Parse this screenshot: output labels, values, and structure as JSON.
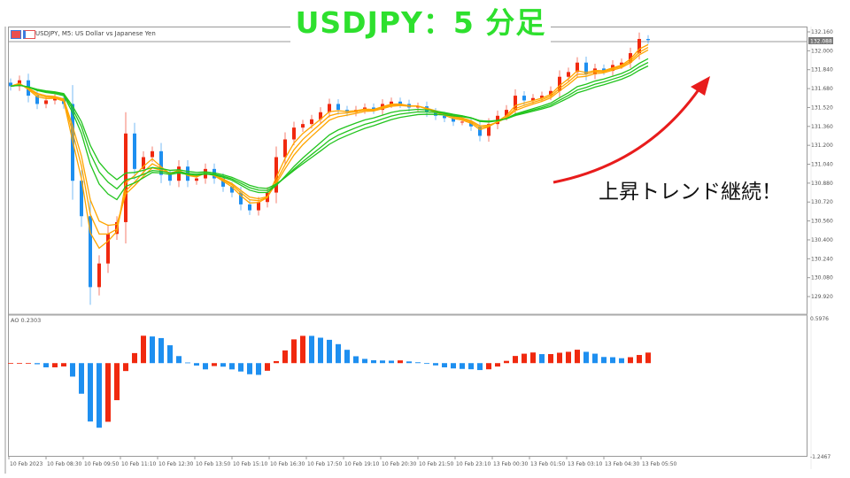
{
  "header": {
    "title": "USDJPY：5 分足"
  },
  "window": {
    "title": "USDJPY, M5:  US Dollar vs Japanese Yen"
  },
  "annotation": {
    "text": "上昇トレンド継続！",
    "arrow_color": "#e81c1c"
  },
  "colors": {
    "bull": "#f0290f",
    "bear": "#1e8ff0",
    "fast_ma": "#ffa500",
    "slow_ma": "#22c41e",
    "title": "#2ee02e",
    "price_badge": "#777777"
  },
  "chart_data": [
    {
      "type": "candlestick",
      "symbol": "USDJPY",
      "timeframe": "M5",
      "current_price": "132.088",
      "ylim": [
        129.84,
        132.2
      ],
      "y_ticks": [
        "132.160",
        "132.000",
        "131.840",
        "131.680",
        "131.520",
        "131.360",
        "131.200",
        "131.040",
        "130.880",
        "130.720",
        "130.560",
        "130.400",
        "130.240",
        "130.080",
        "129.920"
      ],
      "x_ticks": [
        "10 Feb 2023",
        "10 Feb 08:30",
        "10 Feb 09:50",
        "10 Feb 11:10",
        "10 Feb 12:30",
        "10 Feb 13:50",
        "10 Feb 15:10",
        "10 Feb 16:30",
        "10 Feb 17:50",
        "10 Feb 19:10",
        "10 Feb 20:30",
        "10 Feb 21:50",
        "10 Feb 23:10",
        "13 Feb 00:30",
        "13 Feb 01:50",
        "13 Feb 03:10",
        "13 Feb 04:30",
        "13 Feb 05:50"
      ],
      "close": [
        131.7,
        131.75,
        131.62,
        131.55,
        131.58,
        131.6,
        131.55,
        130.9,
        130.6,
        130.0,
        130.2,
        130.45,
        130.55,
        131.3,
        131.0,
        131.1,
        131.15,
        130.95,
        130.9,
        131.02,
        130.9,
        130.92,
        131.0,
        130.92,
        130.85,
        130.8,
        130.7,
        130.65,
        130.72,
        130.8,
        131.1,
        131.25,
        131.35,
        131.38,
        131.42,
        131.48,
        131.55,
        131.5,
        131.48,
        131.5,
        131.52,
        131.5,
        131.55,
        131.57,
        131.55,
        131.52,
        131.53,
        131.48,
        131.45,
        131.43,
        131.4,
        131.4,
        131.36,
        131.28,
        131.38,
        131.45,
        131.5,
        131.62,
        131.58,
        131.6,
        131.62,
        131.66,
        131.78,
        131.82,
        131.9,
        131.8,
        131.85,
        131.83,
        131.88,
        131.9,
        131.98,
        132.1,
        132.09
      ],
      "overlays": [
        "3 orange moving averages",
        "3 green moving averages"
      ]
    },
    {
      "type": "bar",
      "indicator": "AO",
      "label": "AO 0.2303",
      "ylim": [
        -1.2467,
        0.5976
      ],
      "y_ticks": [
        "0.5976",
        "-1.2467"
      ]
    }
  ]
}
